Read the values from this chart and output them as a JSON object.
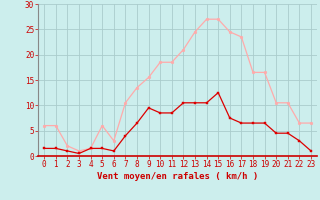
{
  "hours": [
    0,
    1,
    2,
    3,
    4,
    5,
    6,
    7,
    8,
    9,
    10,
    11,
    12,
    13,
    14,
    15,
    16,
    17,
    18,
    19,
    20,
    21,
    22,
    23
  ],
  "avg_wind": [
    1.5,
    1.5,
    1.0,
    0.5,
    1.5,
    1.5,
    1.0,
    4.0,
    6.5,
    9.5,
    8.5,
    8.5,
    10.5,
    10.5,
    10.5,
    12.5,
    7.5,
    6.5,
    6.5,
    6.5,
    4.5,
    4.5,
    3.0,
    1.0
  ],
  "gust_wind": [
    6.0,
    6.0,
    2.0,
    1.0,
    1.5,
    6.0,
    3.0,
    10.5,
    13.5,
    15.5,
    18.5,
    18.5,
    21.0,
    24.5,
    27.0,
    27.0,
    24.5,
    23.5,
    16.5,
    16.5,
    10.5,
    10.5,
    6.5,
    6.5
  ],
  "avg_color": "#dd0000",
  "gust_color": "#ffaaaa",
  "bg_color": "#cceeed",
  "grid_color": "#aacccc",
  "axis_color": "#cc0000",
  "spine_color": "#888888",
  "xlabel": "Vent moyen/en rafales ( km/h )",
  "ylim": [
    0,
    30
  ],
  "yticks": [
    0,
    5,
    10,
    15,
    20,
    25,
    30
  ],
  "label_fontsize": 6.5,
  "tick_fontsize": 5.5
}
